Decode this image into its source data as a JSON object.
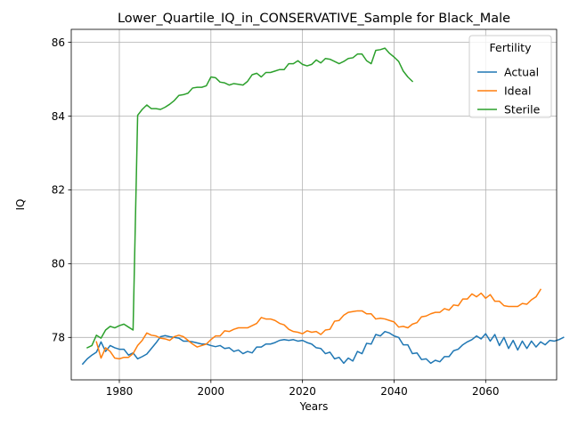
{
  "chart_data": {
    "type": "line",
    "title": "Lower_Quartile_IQ_in_CONSERVATIVE_Sample for Black_Male",
    "xlabel": "Years",
    "ylabel": "IQ",
    "xlim": [
      1969.5,
      2075.5
    ],
    "ylim": [
      76.85,
      86.35
    ],
    "xticks": [
      1980,
      2000,
      2020,
      2040,
      2060
    ],
    "yticks": [
      78,
      80,
      82,
      84,
      86
    ],
    "grid": true,
    "legend": {
      "title": "Fertility",
      "placement": "top-right"
    },
    "series": [
      {
        "name": "Actual",
        "color": "#1f77b4",
        "x_start": 1972,
        "values": [
          77.28,
          77.42,
          77.52,
          77.6,
          77.88,
          77.62,
          77.78,
          77.72,
          77.68,
          77.68,
          77.52,
          77.58,
          77.42,
          77.48,
          77.55,
          77.7,
          77.85,
          78.02,
          78.05,
          78.02,
          78.0,
          77.98,
          77.9,
          77.9,
          77.88,
          77.85,
          77.82,
          77.82,
          77.78,
          77.75,
          77.78,
          77.7,
          77.72,
          77.62,
          77.66,
          77.56,
          77.62,
          77.58,
          77.74,
          77.74,
          77.82,
          77.82,
          77.86,
          77.92,
          77.94,
          77.92,
          77.94,
          77.9,
          77.92,
          77.86,
          77.82,
          77.72,
          77.7,
          77.56,
          77.6,
          77.42,
          77.46,
          77.3,
          77.44,
          77.36,
          77.62,
          77.56,
          77.84,
          77.82,
          78.08,
          78.04,
          78.16,
          78.12,
          78.04,
          78.0,
          77.8,
          77.8,
          77.56,
          77.58,
          77.4,
          77.42,
          77.3,
          77.38,
          77.34,
          77.48,
          77.48,
          77.64,
          77.68,
          77.8,
          77.88,
          77.94,
          78.04,
          77.96,
          78.1,
          77.9,
          78.08,
          77.78,
          78.0,
          77.7,
          77.92,
          77.66,
          77.9,
          77.7,
          77.9,
          77.74,
          77.88,
          77.8,
          77.92,
          77.9,
          77.94,
          78.0
        ]
      },
      {
        "name": "Ideal",
        "color": "#ff7f0e",
        "x_start": 1975,
        "values": [
          77.88,
          77.44,
          77.72,
          77.62,
          77.44,
          77.42,
          77.46,
          77.46,
          77.56,
          77.78,
          77.92,
          78.12,
          78.06,
          78.04,
          77.98,
          77.96,
          77.92,
          78.02,
          78.06,
          78.02,
          77.92,
          77.82,
          77.74,
          77.78,
          77.82,
          77.94,
          78.04,
          78.04,
          78.18,
          78.16,
          78.22,
          78.26,
          78.26,
          78.26,
          78.32,
          78.38,
          78.54,
          78.5,
          78.5,
          78.46,
          78.38,
          78.34,
          78.22,
          78.16,
          78.14,
          78.1,
          78.18,
          78.14,
          78.16,
          78.08,
          78.2,
          78.22,
          78.44,
          78.46,
          78.6,
          78.68,
          78.7,
          78.72,
          78.72,
          78.64,
          78.64,
          78.5,
          78.52,
          78.5,
          78.46,
          78.42,
          78.28,
          78.3,
          78.26,
          78.36,
          78.4,
          78.56,
          78.58,
          78.64,
          78.68,
          78.68,
          78.78,
          78.74,
          78.88,
          78.86,
          79.04,
          79.04,
          79.18,
          79.1,
          79.2,
          79.06,
          79.16,
          78.98,
          78.98,
          78.86,
          78.84,
          78.84,
          78.84,
          78.92,
          78.9,
          79.02,
          79.1,
          79.3
        ]
      },
      {
        "name": "Sterile",
        "color": "#2ca02c",
        "x_start": 1973,
        "values": [
          77.72,
          77.78,
          78.06,
          77.98,
          78.2,
          78.3,
          78.26,
          78.32,
          78.36,
          78.28,
          78.2,
          84.02,
          84.18,
          84.3,
          84.2,
          84.2,
          84.18,
          84.24,
          84.32,
          84.42,
          84.56,
          84.58,
          84.62,
          84.76,
          84.78,
          84.78,
          84.82,
          85.06,
          85.04,
          84.92,
          84.9,
          84.84,
          84.88,
          84.86,
          84.84,
          84.94,
          85.12,
          85.16,
          85.06,
          85.18,
          85.18,
          85.22,
          85.26,
          85.26,
          85.42,
          85.42,
          85.5,
          85.4,
          85.36,
          85.4,
          85.52,
          85.44,
          85.56,
          85.54,
          85.48,
          85.42,
          85.48,
          85.56,
          85.58,
          85.68,
          85.68,
          85.5,
          85.42,
          85.78,
          85.8,
          85.84,
          85.7,
          85.6,
          85.48,
          85.22,
          85.06,
          84.94
        ]
      }
    ]
  }
}
